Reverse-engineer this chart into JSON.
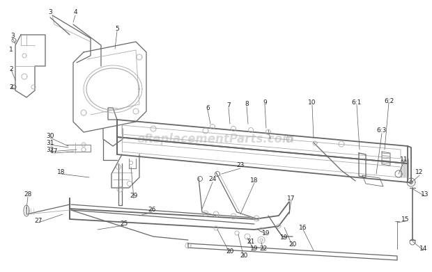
{
  "watermark": "eReplacementParts.com",
  "watermark_color": "#bbbbbb",
  "watermark_alpha": 0.55,
  "bg_color": "#ffffff",
  "line_color": "#aaaaaa",
  "dark_line": "#666666",
  "label_color": "#222222",
  "label_fontsize": 6.5,
  "fig_width": 6.2,
  "fig_height": 3.91,
  "dpi": 100
}
